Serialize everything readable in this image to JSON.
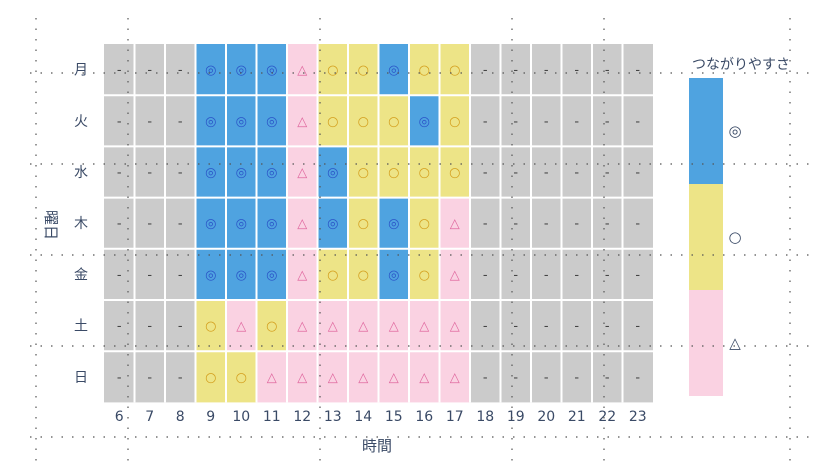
{
  "chart_data": {
    "type": "heatmap",
    "xlabel": "時間",
    "ylabel": "曜日",
    "x": [
      6,
      7,
      8,
      9,
      10,
      11,
      12,
      13,
      14,
      15,
      16,
      17,
      18,
      19,
      20,
      21,
      22,
      23
    ],
    "y": [
      "月",
      "火",
      "水",
      "木",
      "金",
      "土",
      "日"
    ],
    "levels": [
      {
        "key": "◎",
        "color": "#4fa3e0",
        "symbol_color": "#2b55c8"
      },
      {
        "key": "○",
        "color": "#ede487",
        "symbol_color": "#d4a020"
      },
      {
        "key": "△",
        "color": "#fad2e2",
        "symbol_color": "#e06aa0"
      },
      {
        "key": "-",
        "color": "#cbcbcb",
        "symbol_color": "#444444"
      }
    ],
    "legend": {
      "title": "つながりやすさ",
      "items": [
        "◎",
        "○",
        "△"
      ],
      "position": "right"
    },
    "values": [
      [
        "-",
        "-",
        "-",
        "◎",
        "◎",
        "◎",
        "△",
        "○",
        "○",
        "◎",
        "○",
        "○",
        "-",
        "-",
        "-",
        "-",
        "-",
        "-"
      ],
      [
        "-",
        "-",
        "-",
        "◎",
        "◎",
        "◎",
        "△",
        "○",
        "○",
        "○",
        "◎",
        "○",
        "-",
        "-",
        "-",
        "-",
        "-",
        "-"
      ],
      [
        "-",
        "-",
        "-",
        "◎",
        "◎",
        "◎",
        "△",
        "◎",
        "○",
        "○",
        "○",
        "○",
        "-",
        "-",
        "-",
        "-",
        "-",
        "-"
      ],
      [
        "-",
        "-",
        "-",
        "◎",
        "◎",
        "◎",
        "△",
        "◎",
        "○",
        "◎",
        "○",
        "△",
        "-",
        "-",
        "-",
        "-",
        "-",
        "-"
      ],
      [
        "-",
        "-",
        "-",
        "◎",
        "◎",
        "◎",
        "△",
        "○",
        "○",
        "◎",
        "○",
        "△",
        "-",
        "-",
        "-",
        "-",
        "-",
        "-"
      ],
      [
        "-",
        "-",
        "-",
        "○",
        "△",
        "○",
        "△",
        "△",
        "△",
        "△",
        "△",
        "△",
        "-",
        "-",
        "-",
        "-",
        "-",
        "-"
      ],
      [
        "-",
        "-",
        "-",
        "○",
        "○",
        "△",
        "△",
        "△",
        "△",
        "△",
        "△",
        "△",
        "-",
        "-",
        "-",
        "-",
        "-",
        "-"
      ]
    ]
  }
}
